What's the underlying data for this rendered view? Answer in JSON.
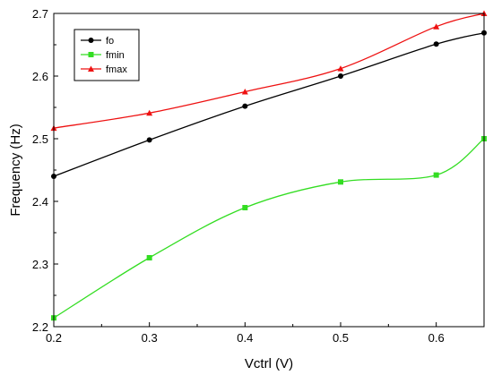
{
  "chart_data": {
    "type": "line",
    "xlabel": "Vctrl (V)",
    "ylabel": "Frequency (Hz)",
    "xlim": [
      0.2,
      0.65
    ],
    "ylim": [
      2.2,
      2.7
    ],
    "x_ticks": [
      "0.2",
      "0.3",
      "0.4",
      "0.5",
      "0.6"
    ],
    "y_ticks": [
      "2.2",
      "2.3",
      "2.4",
      "2.5",
      "2.6",
      "2.7"
    ],
    "x": [
      0.2,
      0.3,
      0.4,
      0.5,
      0.6,
      0.65
    ],
    "grid": false,
    "legend_position": "top-left",
    "series": [
      {
        "name": "fo",
        "color": "#000000",
        "marker": "circle",
        "values": [
          2.44,
          2.498,
          2.552,
          2.6,
          2.651,
          2.669
        ]
      },
      {
        "name": "fmin",
        "color": "#33dd22",
        "marker": "square",
        "values": [
          2.214,
          2.31,
          2.39,
          2.431,
          2.442,
          2.5
        ]
      },
      {
        "name": "fmax",
        "color": "#ee1111",
        "marker": "triangle",
        "values": [
          2.517,
          2.541,
          2.575,
          2.612,
          2.679,
          2.7
        ]
      }
    ]
  }
}
